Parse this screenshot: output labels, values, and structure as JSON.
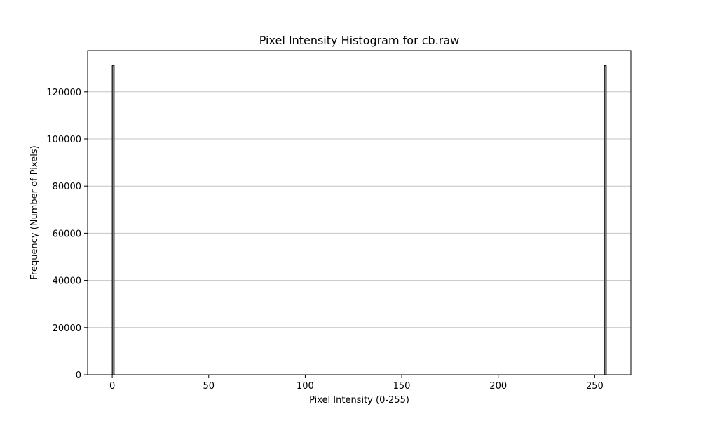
{
  "chart_data": {
    "type": "bar",
    "title": "Pixel Intensity Histogram for cb.raw",
    "xlabel": "Pixel Intensity (0-255)",
    "ylabel": "Frequency (Number of Pixels)",
    "xlim": [
      -12.75,
      268.75
    ],
    "ylim": [
      0,
      137500
    ],
    "xticks": [
      0,
      50,
      100,
      150,
      200,
      250
    ],
    "yticks": [
      0,
      20000,
      40000,
      60000,
      80000,
      100000,
      120000
    ],
    "grid": "y",
    "bar_color": "#808080",
    "edge_color": "#000000",
    "bins": [
      {
        "x": 0,
        "value": 131072
      },
      {
        "x": 255,
        "value": 131072
      }
    ]
  }
}
